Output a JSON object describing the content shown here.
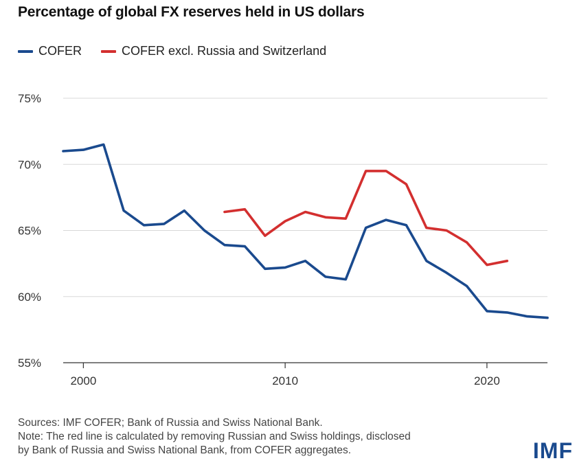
{
  "title": "Percentage of global FX reserves held in US dollars",
  "footer": {
    "sources": "Sources: IMF COFER; Bank of Russia and Swiss National Bank.",
    "note_line1": "Note: The red line is calculated by removing Russian and Swiss holdings, disclosed",
    "note_line2": "by Bank of Russia and Swiss National Bank, from COFER aggregates."
  },
  "logo": "IMF",
  "colors": {
    "cofer": "#1a4a8e",
    "cofer_excl": "#d32f2f",
    "grid": "#d8d8d8"
  },
  "chart_data": {
    "type": "line",
    "title": "Percentage of global FX reserves held in US dollars",
    "xlabel": "",
    "ylabel": "",
    "xlim": [
      1999,
      2023
    ],
    "ylim": [
      55,
      75
    ],
    "xticks": [
      2000,
      2010,
      2020
    ],
    "yticks": [
      55,
      60,
      65,
      70,
      75
    ],
    "ytick_labels": [
      "55%",
      "60%",
      "65%",
      "70%",
      "75%"
    ],
    "grid": true,
    "legend": "top-left",
    "series": [
      {
        "name": "COFER",
        "color": "#1a4a8e",
        "x": [
          1999,
          2000,
          2001,
          2002,
          2003,
          2004,
          2005,
          2006,
          2007,
          2008,
          2009,
          2010,
          2011,
          2012,
          2013,
          2014,
          2015,
          2016,
          2017,
          2018,
          2019,
          2020,
          2021,
          2022,
          2023
        ],
        "y": [
          71.0,
          71.1,
          71.5,
          66.5,
          65.4,
          65.5,
          66.5,
          65.0,
          63.9,
          63.8,
          62.1,
          62.2,
          62.7,
          61.5,
          61.3,
          65.2,
          65.8,
          65.4,
          62.7,
          61.8,
          60.8,
          58.9,
          58.8,
          58.5,
          58.4
        ]
      },
      {
        "name": "COFER excl. Russia and Switzerland",
        "color": "#d32f2f",
        "x": [
          2007,
          2008,
          2009,
          2010,
          2011,
          2012,
          2013,
          2014,
          2015,
          2016,
          2017,
          2018,
          2019,
          2020,
          2021
        ],
        "y": [
          66.4,
          66.6,
          64.6,
          65.7,
          66.4,
          66.0,
          65.9,
          69.5,
          69.5,
          68.5,
          65.2,
          65.0,
          64.1,
          62.4,
          62.7
        ]
      }
    ]
  }
}
